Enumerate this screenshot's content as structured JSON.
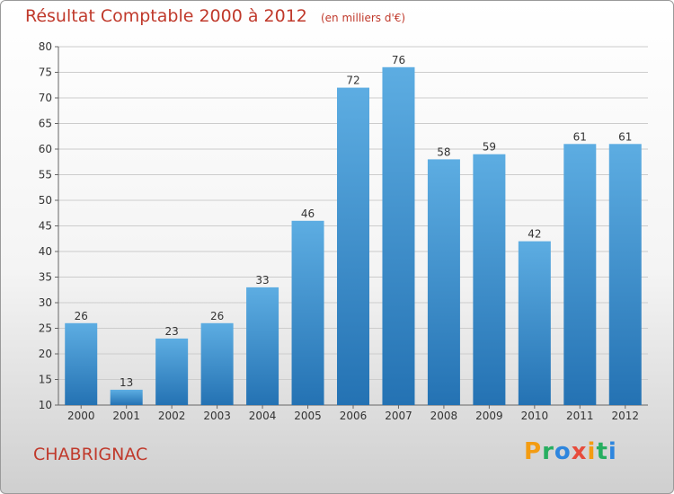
{
  "header": {
    "title": "Résultat Comptable 2000 à 2012",
    "unit": "(en milliers d'€)"
  },
  "footer": {
    "commune": "CHABRIGNAC",
    "logo_letters": [
      {
        "char": "P",
        "color": "#f39c12"
      },
      {
        "char": "r",
        "color": "#27ae60"
      },
      {
        "char": "o",
        "color": "#2e86de"
      },
      {
        "char": "x",
        "color": "#e74c3c"
      },
      {
        "char": "i",
        "color": "#f39c12"
      },
      {
        "char": "t",
        "color": "#27ae60"
      },
      {
        "char": "i",
        "color": "#2e86de"
      }
    ]
  },
  "chart_data": {
    "type": "bar",
    "title": "Résultat Comptable 2000 à 2012",
    "subtitle": "(en milliers d'€)",
    "xlabel": "",
    "ylabel": "",
    "categories": [
      "2000",
      "2001",
      "2002",
      "2003",
      "2004",
      "2005",
      "2006",
      "2007",
      "2008",
      "2009",
      "2010",
      "2011",
      "2012"
    ],
    "values": [
      26,
      13,
      23,
      26,
      33,
      46,
      72,
      76,
      58,
      59,
      42,
      61,
      61
    ],
    "ylim": [
      10,
      80
    ],
    "yticks": [
      10,
      15,
      20,
      25,
      30,
      35,
      40,
      45,
      50,
      55,
      60,
      65,
      70,
      75,
      80
    ],
    "grid": "horizontal",
    "colors": {
      "bar_light": "#5dade2",
      "bar_dark": "#2472b3",
      "grid": "#cccccc"
    }
  }
}
